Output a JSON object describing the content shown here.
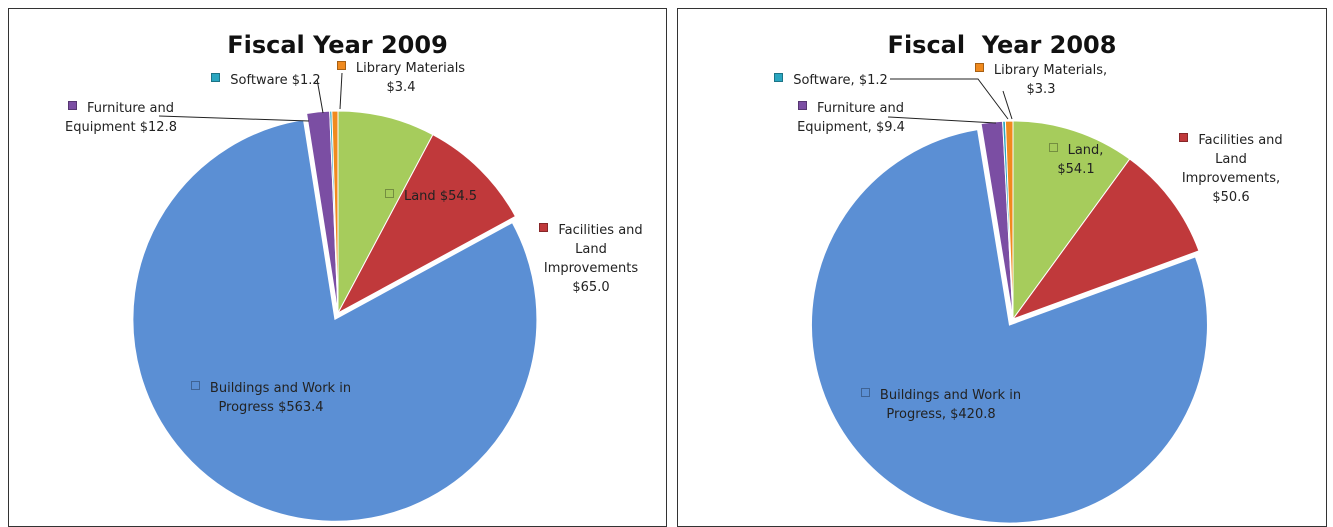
{
  "chart_data": [
    {
      "type": "pie",
      "title": "Fiscal Year 2009",
      "categories": [
        "Land",
        "Facilities and Land Improvements",
        "Buildings and Work in Progress",
        "Furniture and Equipment",
        "Software",
        "Library Materials"
      ],
      "values": [
        54.5,
        65.0,
        563.4,
        12.8,
        1.2,
        3.4
      ],
      "value_labels": [
        "$54.5",
        "$65.0",
        "$563.4",
        "$12.8",
        "$1.2",
        "$3.4"
      ],
      "colors": [
        "#a6cc5c",
        "#c0393b",
        "#5b8fd4",
        "#7b4ea3",
        "#2aa6c0",
        "#f08a1e"
      ]
    },
    {
      "type": "pie",
      "title": "Fiscal  Year 2008",
      "categories": [
        "Land,",
        "Facilities and Land Improvements,",
        "Buildings and Work in Progress,",
        "Furniture and Equipment,",
        "Software,",
        "Library Materials,"
      ],
      "values": [
        54.1,
        50.6,
        420.8,
        9.4,
        1.2,
        3.3
      ],
      "value_labels": [
        "$54.1",
        "$50.6",
        "$420.8",
        "$9.4",
        "$1.2",
        "$3.3"
      ],
      "colors": [
        "#a6cc5c",
        "#c0393b",
        "#5b8fd4",
        "#7b4ea3",
        "#2aa6c0",
        "#f08a1e"
      ]
    }
  ]
}
